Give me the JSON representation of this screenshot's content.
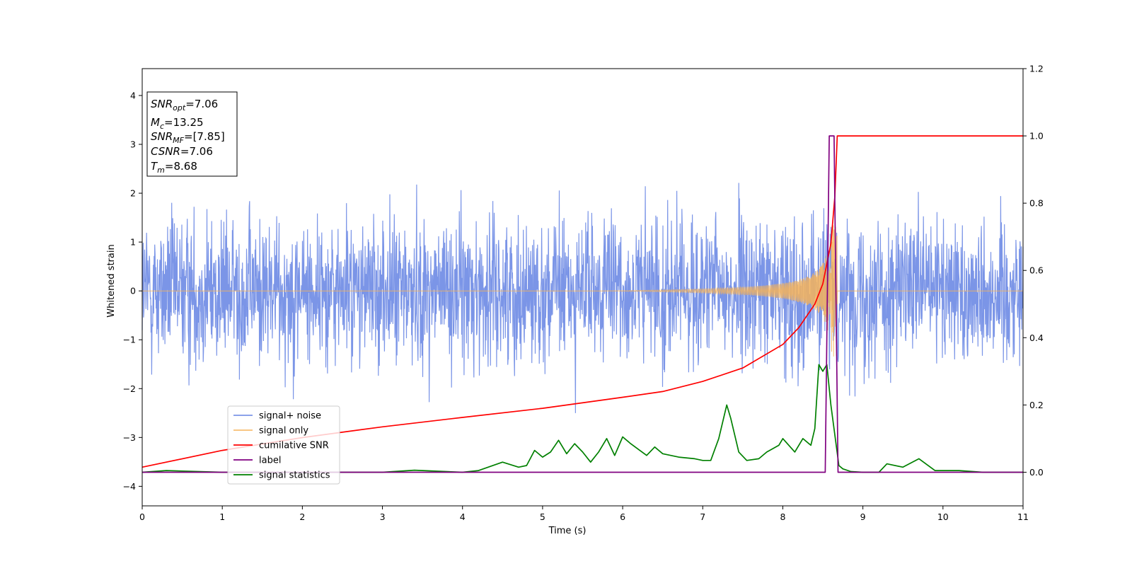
{
  "chart_data": {
    "type": "line",
    "xlabel": "Time (s)",
    "ylabel": "Whitened strain",
    "xlim": [
      0,
      11
    ],
    "ylim": [
      -4.4,
      4.55
    ],
    "ylim_right": [
      -0.1,
      1.2
    ],
    "x_ticks": [
      "0",
      "1",
      "2",
      "3",
      "4",
      "5",
      "6",
      "7",
      "8",
      "9",
      "10",
      "11"
    ],
    "y_ticks": [
      "4",
      "3",
      "2",
      "1",
      "0",
      "−1",
      "−2",
      "−3",
      "−4"
    ],
    "y_right_ticks": [
      "0.0",
      "0.2",
      "0.4",
      "0.6",
      "0.8",
      "1.0",
      "1.2"
    ],
    "grid": false,
    "legend_position": "lower-left",
    "series": [
      {
        "name": "signal+ noise",
        "axis": "left",
        "color": "#7b95e7",
        "description_values": "white-noise strain, amplitude roughly within [-3.9, 3.8]",
        "approx_sigma": 1.0
      },
      {
        "name": "signal only",
        "axis": "left",
        "color": "#f5b35a",
        "chirp": {
          "start": 0,
          "merger": 8.68,
          "amplitude_start": 0.02,
          "amplitude_merger": 1.35
        }
      },
      {
        "name": "cumilative SNR",
        "axis": "right",
        "color": "#ff0000",
        "x": [
          0,
          1,
          2,
          3,
          4,
          5,
          6,
          6.5,
          7,
          7.5,
          8,
          8.2,
          8.4,
          8.5,
          8.6,
          8.65,
          8.68,
          11
        ],
        "values": [
          0.015,
          0.065,
          0.103,
          0.135,
          0.163,
          0.19,
          0.223,
          0.24,
          0.27,
          0.31,
          0.38,
          0.43,
          0.5,
          0.56,
          0.68,
          0.82,
          1.0,
          1.0
        ]
      },
      {
        "name": "label",
        "axis": "right",
        "color": "#800080",
        "x": [
          0,
          8.53,
          8.58,
          8.64,
          8.69,
          11
        ],
        "values": [
          0,
          0,
          1,
          1,
          0,
          0
        ]
      },
      {
        "name": "signal statistics",
        "axis": "right",
        "color": "#008000",
        "x": [
          0,
          0.3,
          1,
          2,
          3,
          3.4,
          4,
          4.2,
          4.5,
          4.7,
          4.8,
          4.9,
          5.0,
          5.1,
          5.2,
          5.3,
          5.4,
          5.5,
          5.6,
          5.7,
          5.8,
          5.9,
          6.0,
          6.1,
          6.3,
          6.4,
          6.5,
          6.7,
          6.9,
          7.0,
          7.1,
          7.2,
          7.3,
          7.35,
          7.45,
          7.55,
          7.7,
          7.8,
          7.95,
          8.0,
          8.15,
          8.25,
          8.35,
          8.4,
          8.45,
          8.5,
          8.55,
          8.6,
          8.7,
          8.75,
          8.85,
          9.0,
          9.2,
          9.3,
          9.5,
          9.7,
          9.9,
          10.2,
          10.5,
          11
        ],
        "values": [
          0.0,
          0.005,
          0.0,
          0.0,
          0.0,
          0.006,
          0.0,
          0.005,
          0.03,
          0.015,
          0.02,
          0.065,
          0.045,
          0.06,
          0.095,
          0.055,
          0.085,
          0.06,
          0.03,
          0.06,
          0.1,
          0.05,
          0.105,
          0.085,
          0.05,
          0.075,
          0.055,
          0.045,
          0.04,
          0.035,
          0.035,
          0.1,
          0.2,
          0.16,
          0.06,
          0.035,
          0.04,
          0.06,
          0.08,
          0.1,
          0.06,
          0.1,
          0.08,
          0.13,
          0.32,
          0.3,
          0.32,
          0.2,
          0.02,
          0.01,
          0.002,
          0.0,
          0.0,
          0.025,
          0.015,
          0.04,
          0.005,
          0.005,
          0.0,
          0.0
        ]
      }
    ],
    "annotation": {
      "lines": [
        {
          "pre": "SNR",
          "sub": "opt",
          "post": "=7.06"
        },
        {
          "pre": "M",
          "sub": "c",
          "post": "=13.25"
        },
        {
          "pre": "SNR",
          "sub": "MF",
          "post": "=[7.85]"
        },
        {
          "pre": "CSNR",
          "sub": "",
          "post": "=7.06"
        },
        {
          "pre": "T",
          "sub": "m",
          "post": "=8.68"
        }
      ]
    }
  }
}
